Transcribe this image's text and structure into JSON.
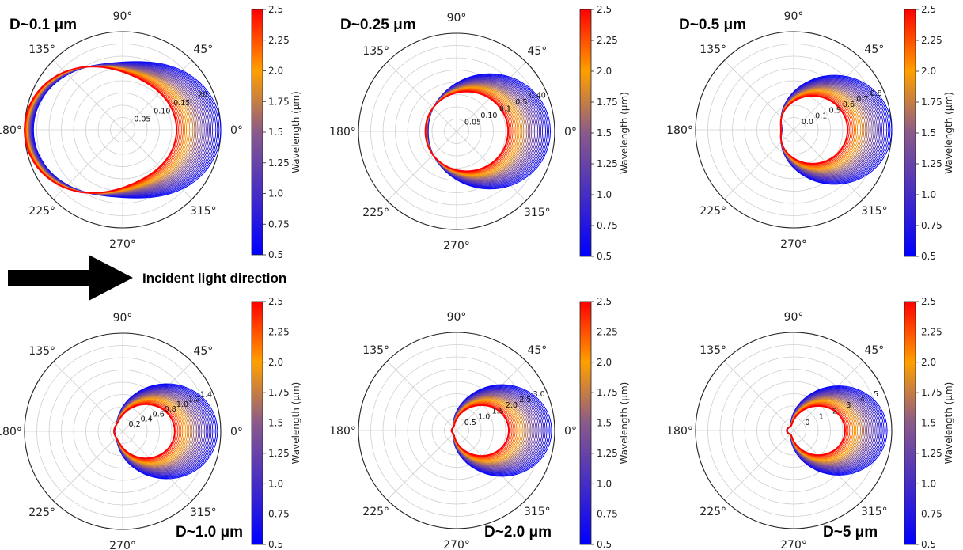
{
  "figure": {
    "arrow_label": "Incident light direction"
  },
  "chart_data": [
    {
      "type": "polar",
      "title": "D~0.1 μm",
      "title_position": "top-left",
      "angle_labels": [
        "0°",
        "45°",
        "90°",
        "135°",
        "180°",
        "225°",
        "270°",
        "315°"
      ],
      "radial_ticks": [
        "0.05",
        "0.10",
        "0.15",
        ".20"
      ],
      "rmax": 0.22,
      "shape": {
        "forward": 0.22,
        "backward": 0.2,
        "side": 0.12
      },
      "colorbar": {
        "label": "Wavelength (μm)",
        "ticks": [
          "0.5",
          "0.75",
          "1.0",
          "1.25",
          "1.5",
          "1.75",
          "2.0",
          "2.25",
          "2.5"
        ],
        "range": [
          0.5,
          2.5
        ]
      }
    },
    {
      "type": "polar",
      "title": "D~0.25 μm",
      "title_position": "top-left",
      "angle_labels": [
        "0°",
        "45°",
        "90°",
        "135°",
        "180°",
        "225°",
        "270°",
        "315°"
      ],
      "radial_ticks": [
        "0.05",
        "0.10",
        "0.1",
        "0.5",
        "0.40"
      ],
      "rmax": 0.45,
      "shape": {
        "forward": 0.43,
        "backward": 0.13,
        "side": 0.19
      },
      "colorbar": {
        "label": "Wavelength (μm)",
        "ticks": [
          "0.5",
          "0.75",
          "1.0",
          "1.25",
          "1.5",
          "1.75",
          "2.0",
          "2.25",
          "2.5"
        ],
        "range": [
          0.5,
          2.5
        ]
      }
    },
    {
      "type": "polar",
      "title": "D~0.5 μm",
      "title_position": "top-left",
      "angle_labels": [
        "0",
        "45°",
        "90°",
        "135°",
        "180°",
        "225°",
        "270°",
        "315°"
      ],
      "radial_ticks": [
        "0.0",
        "0.1",
        "0.5",
        "0.6",
        "0.7",
        "0.8"
      ],
      "rmax": 0.85,
      "shape": {
        "forward": 0.85,
        "backward": 0.1,
        "side": 0.25
      },
      "colorbar": {
        "label": "Wavelength (μm)",
        "ticks": [
          "0.5",
          "0.75",
          "1.0",
          "1.25",
          "1.5",
          "1.75",
          "2.0",
          "2.25",
          "2.5"
        ],
        "range": [
          0.5,
          2.5
        ]
      }
    },
    {
      "type": "polar",
      "title": "D~1.0 μm",
      "title_position": "bottom-right",
      "angle_labels": [
        "0°",
        "45°",
        "90°",
        "135°",
        "180°",
        "225°",
        "270°",
        "315°"
      ],
      "radial_ticks": [
        "0.2",
        "0.4",
        "0.6",
        "0.8",
        "1.0",
        "1.2",
        "1.4"
      ],
      "rmax": 1.5,
      "shape": {
        "forward": 1.45,
        "backward": 0.12,
        "side": 0.15
      },
      "colorbar": {
        "label": "Wavelength (μm)",
        "ticks": [
          "0.5",
          "0.75",
          "1.0",
          "1.25",
          "1.5",
          "1.75",
          "2.0",
          "2.25",
          "2.5"
        ],
        "range": [
          0.5,
          2.5
        ]
      }
    },
    {
      "type": "polar",
      "title": "D~2.0 μm",
      "title_position": "bottom-right",
      "angle_labels": [
        "0°",
        "45°",
        "90°",
        "135°",
        "180°",
        "225°",
        "270°",
        "315°"
      ],
      "radial_ticks": [
        "0.5",
        "1.0",
        "1.5",
        "2.0",
        "2.5",
        "3.0"
      ],
      "rmax": 3.2,
      "shape": {
        "forward": 3.1,
        "backward": 0.15,
        "side": 0.08
      },
      "colorbar": {
        "label": "Wavelength (μm)",
        "ticks": [
          "0.5",
          "0.75",
          "1.0",
          "1.25",
          "1.5",
          "1.75",
          "2.0",
          "2.25",
          "2.5"
        ],
        "range": [
          0.5,
          2.5
        ]
      }
    },
    {
      "type": "polar",
      "title": "D~5 μm",
      "title_position": "bottom-right",
      "angle_labels": [
        "0",
        "45°",
        "90°",
        "135°",
        "180°",
        "225°",
        "270°",
        "315°"
      ],
      "radial_ticks": [
        "0",
        "1",
        "2",
        "3",
        "4",
        "5"
      ],
      "rmax": 6.3,
      "shape": {
        "forward": 6.0,
        "backward": 0.4,
        "side": 0.04
      },
      "colorbar": {
        "label": "Wavelength (μm)",
        "ticks": [
          "0.5",
          "0.75",
          "1.0",
          "1.25",
          "1.5",
          "1.75",
          "2.0",
          "2.25",
          "2.5"
        ],
        "range": [
          0.5,
          2.5
        ]
      }
    }
  ]
}
